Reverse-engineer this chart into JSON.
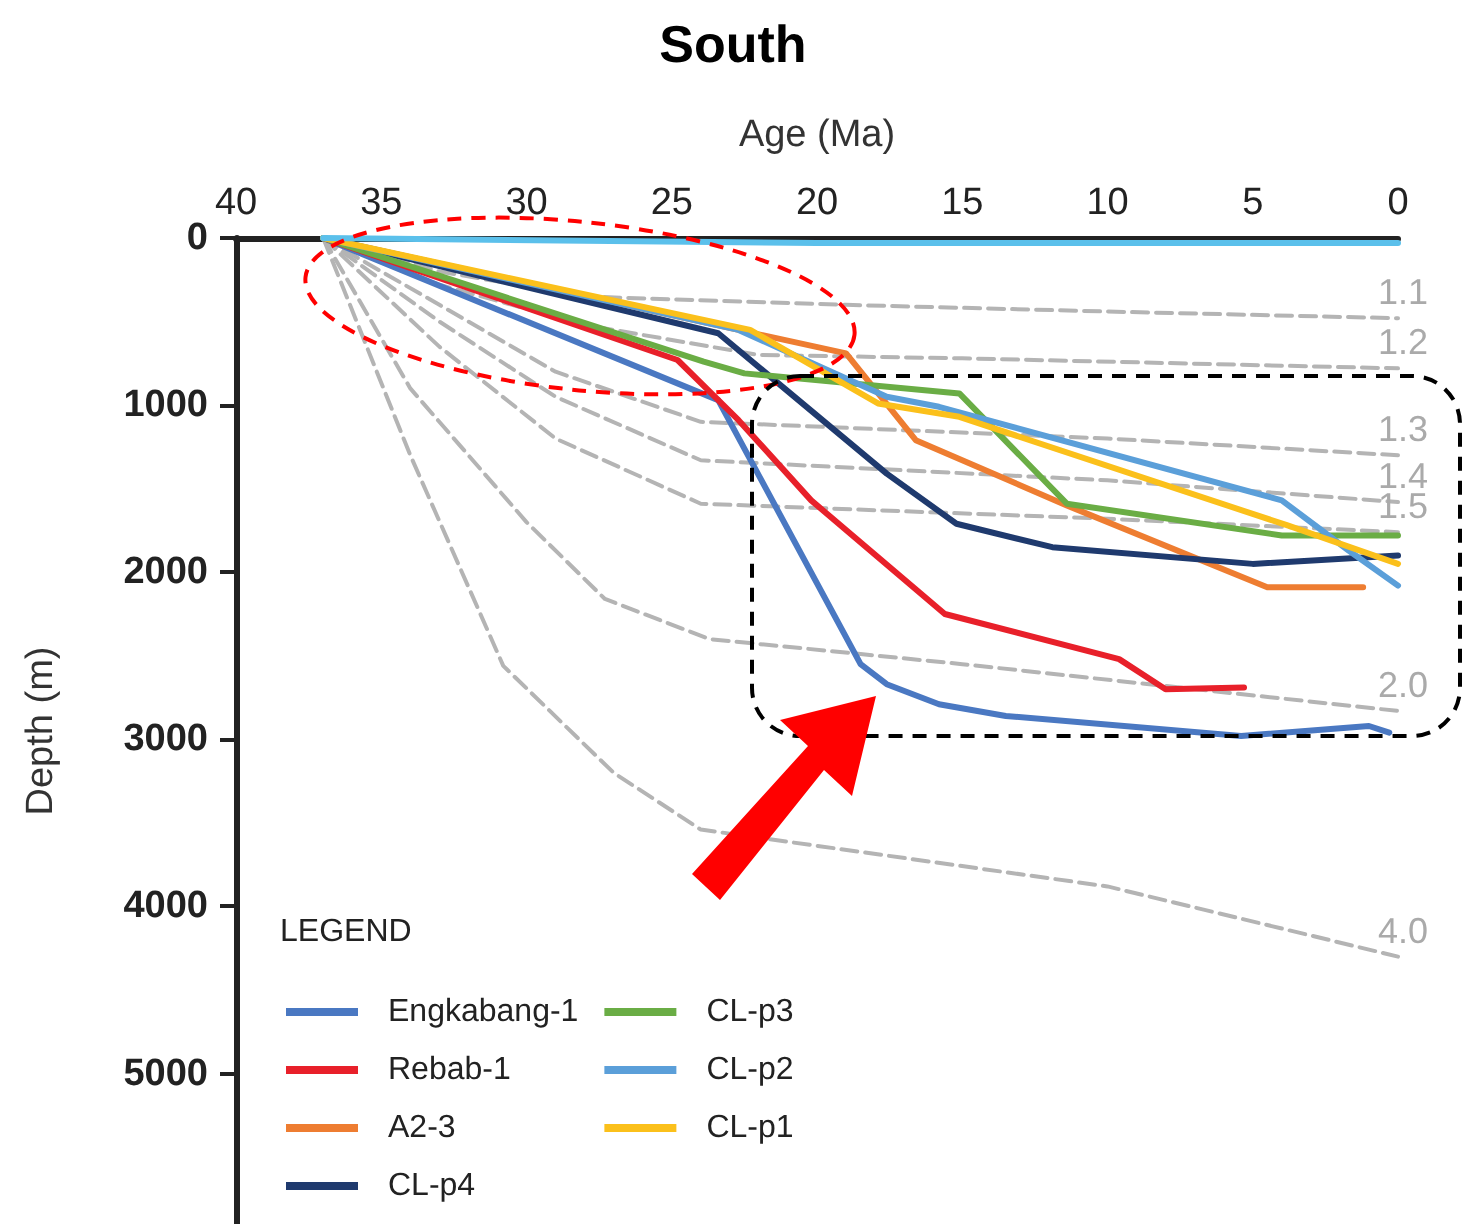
{
  "chart_data": {
    "type": "line",
    "title": "South",
    "xlabel": "Age (Ma)",
    "ylabel": "Depth (m)",
    "legend_title": "LEGEND",
    "xlim": [
      40,
      0
    ],
    "xticks": [
      40,
      35,
      30,
      25,
      20,
      15,
      10,
      5,
      0
    ],
    "ylim": [
      5900,
      0
    ],
    "yticks": [
      0,
      1000,
      2000,
      3000,
      4000,
      5000
    ],
    "grid": false,
    "legend": "bottom left",
    "marker": "none",
    "line_style": "solid",
    "series": [
      {
        "name": "Engkabang-1",
        "color": "#4a78c2",
        "x": [
          37,
          23.4,
          18.5,
          17.6,
          15.8,
          13.5,
          5.4,
          1,
          0.3
        ],
        "values": [
          0,
          970,
          2550,
          2670,
          2790,
          2860,
          2980,
          2920,
          2960
        ]
      },
      {
        "name": "Rebab-1",
        "color": "#e8202a",
        "x": [
          37,
          24.8,
          22.7,
          20.2,
          15.6,
          9.6,
          8.0,
          5.3
        ],
        "values": [
          0,
          730,
          1090,
          1570,
          2250,
          2520,
          2700,
          2690
        ]
      },
      {
        "name": "A2-3",
        "color": "#ee7d31",
        "x": [
          37,
          22.7,
          19.0,
          16.6,
          11.4,
          4.5,
          1.2
        ],
        "values": [
          0,
          550,
          690,
          1210,
          1600,
          2090,
          2090
        ]
      },
      {
        "name": "CL-p4",
        "color": "#1f3a6e",
        "x": [
          37,
          23.4,
          17.6,
          15.2,
          11.9,
          5.0,
          0
        ],
        "values": [
          0,
          570,
          1410,
          1710,
          1850,
          1950,
          1900
        ]
      },
      {
        "name": "CL-p3",
        "color": "#6aad45",
        "x": [
          37,
          23.9,
          22.5,
          15.1,
          11.4,
          4.0,
          0
        ],
        "values": [
          0,
          740,
          810,
          930,
          1590,
          1780,
          1780
        ]
      },
      {
        "name": "CL-p2",
        "color": "#5b9fd9",
        "x": [
          37,
          22.7,
          17.6,
          15.8,
          4.0,
          1.7,
          0
        ],
        "values": [
          0,
          550,
          950,
          1010,
          1570,
          1870,
          2080
        ]
      },
      {
        "name": "CL-p1",
        "color": "#fbc01b",
        "x": [
          37,
          22.3,
          17.9,
          15.1,
          3.8,
          0
        ],
        "values": [
          0,
          550,
          990,
          1070,
          1720,
          1950
        ]
      },
      {
        "color": "#5bc0eb",
        "x": [
          37,
          20,
          0
        ],
        "values": [
          0,
          30,
          30
        ]
      },
      {
        "name": "1.1",
        "color": "#b4b4b4",
        "line_style": "dashed",
        "x": [
          37,
          33,
          28,
          19,
          10,
          0
        ],
        "values": [
          0,
          200,
          350,
          400,
          440,
          480
        ]
      },
      {
        "name": "1.2",
        "color": "#b4b4b4",
        "line_style": "dashed",
        "x": [
          37,
          33,
          28,
          22,
          15,
          0
        ],
        "values": [
          0,
          280,
          520,
          700,
          720,
          780
        ]
      },
      {
        "name": "1.3",
        "color": "#b4b4b4",
        "line_style": "dashed",
        "x": [
          37,
          33,
          29,
          24,
          10,
          0
        ],
        "values": [
          0,
          400,
          800,
          1100,
          1200,
          1300
        ]
      },
      {
        "name": "1.4",
        "color": "#b4b4b4",
        "line_style": "dashed",
        "x": [
          37,
          33,
          29,
          24,
          10,
          0
        ],
        "values": [
          0,
          500,
          950,
          1330,
          1450,
          1580
        ]
      },
      {
        "name": "1.5",
        "color": "#b4b4b4",
        "line_style": "dashed",
        "x": [
          37,
          33,
          29,
          24,
          10,
          0
        ],
        "values": [
          0,
          650,
          1200,
          1590,
          1680,
          1760
        ]
      },
      {
        "name": "2.0",
        "color": "#b4b4b4",
        "line_style": "dashed",
        "x": [
          37,
          34,
          30,
          27.3,
          23.7,
          15,
          0
        ],
        "values": [
          0,
          900,
          1700,
          2160,
          2400,
          2550,
          2830
        ]
      },
      {
        "name": "4.0",
        "color": "#b4b4b4",
        "line_style": "dashed",
        "x": [
          37,
          34,
          30.8,
          27,
          24,
          10,
          0
        ],
        "values": [
          0,
          1300,
          2560,
          3200,
          3540,
          3880,
          4300
        ]
      }
    ]
  }
}
